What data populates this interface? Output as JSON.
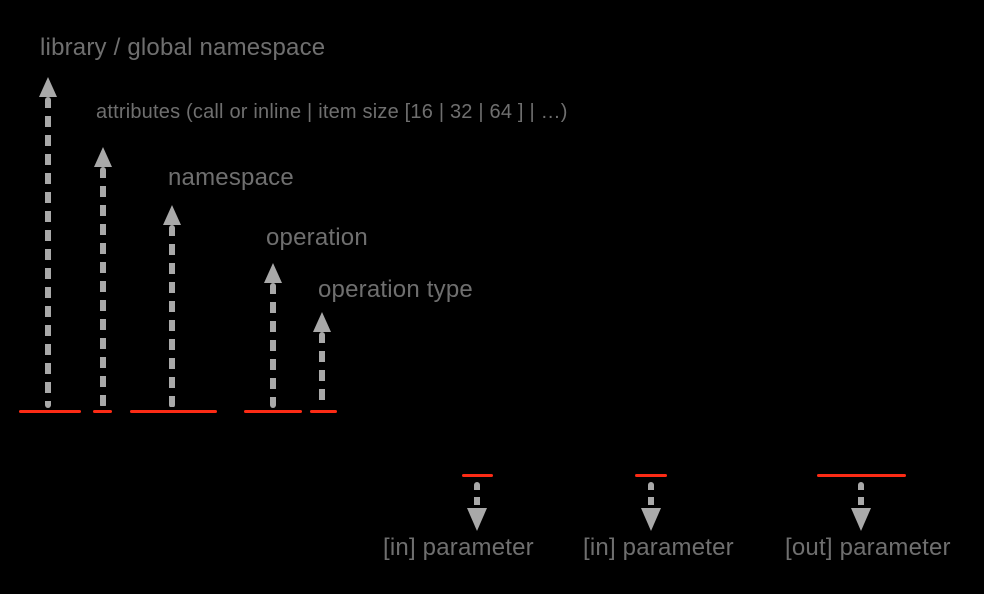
{
  "colors": {
    "background": "#000000",
    "label": "#6f6f6f",
    "arrow": "#a9a9a9",
    "underline": "#fc2b15"
  },
  "callouts_up": [
    {
      "id": "library-global-namespace",
      "label": "library / global namespace"
    },
    {
      "id": "attributes",
      "label": "attributes (call or inline | item size [16 | 32 | 64 ] | …)"
    },
    {
      "id": "namespace",
      "label": "namespace"
    },
    {
      "id": "operation",
      "label": "operation"
    },
    {
      "id": "operation-type",
      "label": "operation type"
    }
  ],
  "callouts_down": [
    {
      "id": "in-parameter-1",
      "label": "[in] parameter"
    },
    {
      "id": "in-parameter-2",
      "label": "[in] parameter"
    },
    {
      "id": "out-parameter",
      "label": "[out] parameter"
    }
  ]
}
